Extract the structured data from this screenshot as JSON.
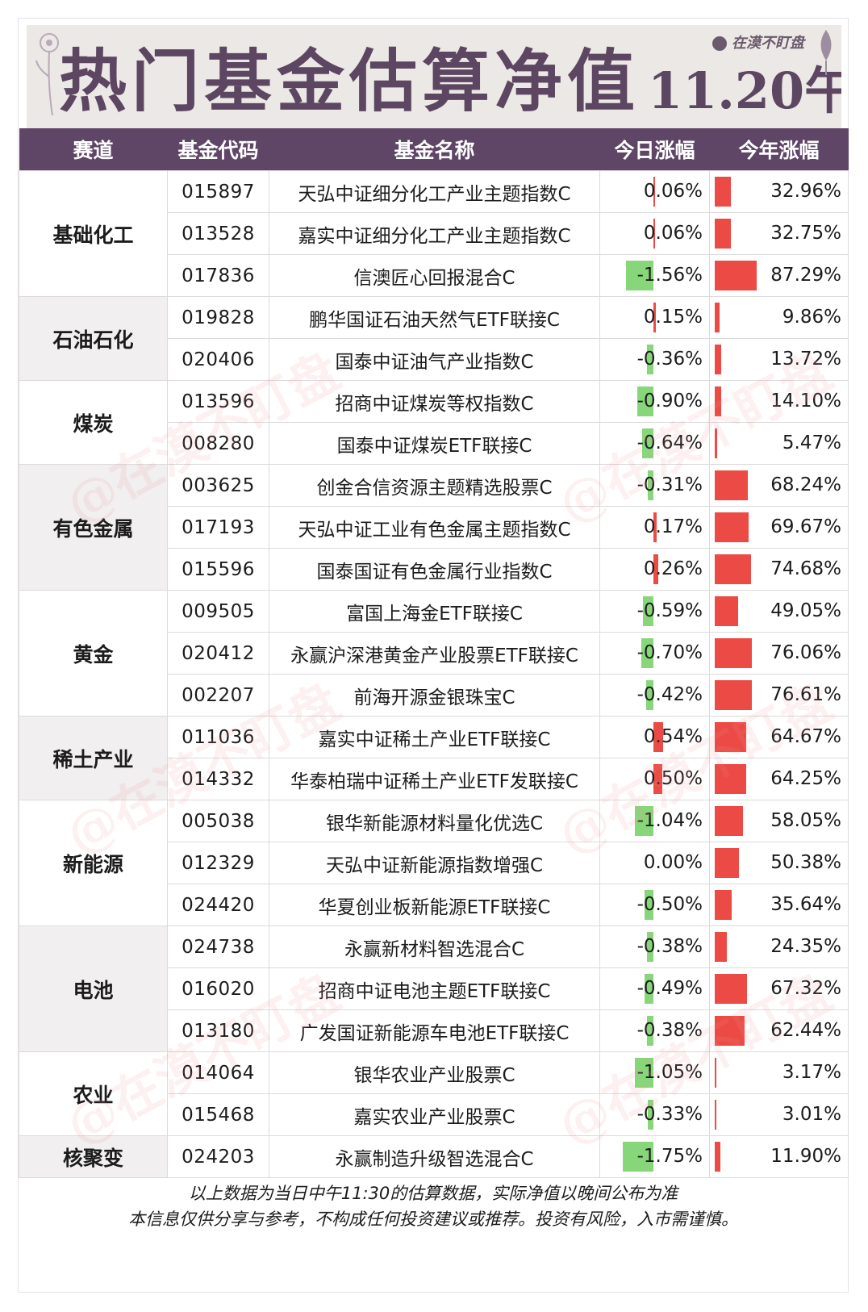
{
  "banner": {
    "title": "热门基金估算净值",
    "date": "11.20午",
    "brand": "在漠不盯盘"
  },
  "colors": {
    "header_bg": "#5f4566",
    "banner_bg": "#ece8e6",
    "positive_bar": "#ec4a44",
    "negative_bar": "#87d67a"
  },
  "table": {
    "headers": [
      "赛道",
      "基金代码",
      "基金名称",
      "今日涨幅",
      "今年涨幅"
    ],
    "rows": [
      {
        "sector": "基础化工",
        "span": 3,
        "code": "015897",
        "name": "天弘中证细分化工产业主题指数C",
        "today": "0.06%",
        "today_val": 0.06,
        "ytd": "32.96%",
        "ytd_val": 32.96
      },
      {
        "code": "013528",
        "name": "嘉实中证细分化工产业主题指数C",
        "today": "0.06%",
        "today_val": 0.06,
        "ytd": "32.75%",
        "ytd_val": 32.75
      },
      {
        "code": "017836",
        "name": "信澳匠心回报混合C",
        "today": "-1.56%",
        "today_val": -1.56,
        "ytd": "87.29%",
        "ytd_val": 87.29
      },
      {
        "sector": "石油石化",
        "span": 2,
        "code": "019828",
        "name": "鹏华国证石油天然气ETF联接C",
        "today": "0.15%",
        "today_val": 0.15,
        "ytd": "9.86%",
        "ytd_val": 9.86
      },
      {
        "code": "020406",
        "name": "国泰中证油气产业指数C",
        "today": "-0.36%",
        "today_val": -0.36,
        "ytd": "13.72%",
        "ytd_val": 13.72
      },
      {
        "sector": "煤炭",
        "span": 2,
        "code": "013596",
        "name": "招商中证煤炭等权指数C",
        "today": "-0.90%",
        "today_val": -0.9,
        "ytd": "14.10%",
        "ytd_val": 14.1
      },
      {
        "code": "008280",
        "name": "国泰中证煤炭ETF联接C",
        "today": "-0.64%",
        "today_val": -0.64,
        "ytd": "5.47%",
        "ytd_val": 5.47
      },
      {
        "sector": "有色金属",
        "span": 3,
        "code": "003625",
        "name": "创金合信资源主题精选股票C",
        "today": "-0.31%",
        "today_val": -0.31,
        "ytd": "68.24%",
        "ytd_val": 68.24
      },
      {
        "code": "017193",
        "name": "天弘中证工业有色金属主题指数C",
        "today": "0.17%",
        "today_val": 0.17,
        "ytd": "69.67%",
        "ytd_val": 69.67
      },
      {
        "code": "015596",
        "name": "国泰国证有色金属行业指数C",
        "today": "0.26%",
        "today_val": 0.26,
        "ytd": "74.68%",
        "ytd_val": 74.68
      },
      {
        "sector": "黄金",
        "span": 3,
        "code": "009505",
        "name": "富国上海金ETF联接C",
        "today": "-0.59%",
        "today_val": -0.59,
        "ytd": "49.05%",
        "ytd_val": 49.05
      },
      {
        "code": "020412",
        "name": "永赢沪深港黄金产业股票ETF联接C",
        "today": "-0.70%",
        "today_val": -0.7,
        "ytd": "76.06%",
        "ytd_val": 76.06
      },
      {
        "code": "002207",
        "name": "前海开源金银珠宝C",
        "today": "-0.42%",
        "today_val": -0.42,
        "ytd": "76.61%",
        "ytd_val": 76.61
      },
      {
        "sector": "稀土产业",
        "span": 2,
        "code": "011036",
        "name": "嘉实中证稀土产业ETF联接C",
        "today": "0.54%",
        "today_val": 0.54,
        "ytd": "64.67%",
        "ytd_val": 64.67
      },
      {
        "code": "014332",
        "name": "华泰柏瑞中证稀土产业ETF发联接C",
        "today": "0.50%",
        "today_val": 0.5,
        "ytd": "64.25%",
        "ytd_val": 64.25
      },
      {
        "sector": "新能源",
        "span": 3,
        "code": "005038",
        "name": "银华新能源材料量化优选C",
        "today": "-1.04%",
        "today_val": -1.04,
        "ytd": "58.05%",
        "ytd_val": 58.05
      },
      {
        "code": "012329",
        "name": "天弘中证新能源指数增强C",
        "today": "0.00%",
        "today_val": 0.0,
        "ytd": "50.38%",
        "ytd_val": 50.38
      },
      {
        "code": "024420",
        "name": "华夏创业板新能源ETF联接C",
        "today": "-0.50%",
        "today_val": -0.5,
        "ytd": "35.64%",
        "ytd_val": 35.64
      },
      {
        "sector": "电池",
        "span": 3,
        "code": "024738",
        "name": "永赢新材料智选混合C",
        "today": "-0.38%",
        "today_val": -0.38,
        "ytd": "24.35%",
        "ytd_val": 24.35
      },
      {
        "code": "016020",
        "name": "招商中证电池主题ETF联接C",
        "today": "-0.49%",
        "today_val": -0.49,
        "ytd": "67.32%",
        "ytd_val": 67.32
      },
      {
        "code": "013180",
        "name": "广发国证新能源车电池ETF联接C",
        "today": "-0.38%",
        "today_val": -0.38,
        "ytd": "62.44%",
        "ytd_val": 62.44
      },
      {
        "sector": "农业",
        "span": 2,
        "code": "014064",
        "name": "银华农业产业股票C",
        "today": "-1.05%",
        "today_val": -1.05,
        "ytd": "3.17%",
        "ytd_val": 3.17
      },
      {
        "code": "015468",
        "name": "嘉实农业产业股票C",
        "today": "-0.33%",
        "today_val": -0.33,
        "ytd": "3.01%",
        "ytd_val": 3.01
      },
      {
        "sector": "核聚变",
        "span": 1,
        "code": "024203",
        "name": "永赢制造升级智选混合C",
        "today": "-1.75%",
        "today_val": -1.75,
        "ytd": "11.90%",
        "ytd_val": 11.9
      }
    ]
  },
  "footnote": {
    "line1": "以上数据为当日中午11:30的估算数据，实际净值以晚间公布为准",
    "line2": "本信息仅供分享与参考，不构成任何投资建议或推荐。投资有风险，入市需谨慎。"
  },
  "watermark": "@在漠不盯盘"
}
